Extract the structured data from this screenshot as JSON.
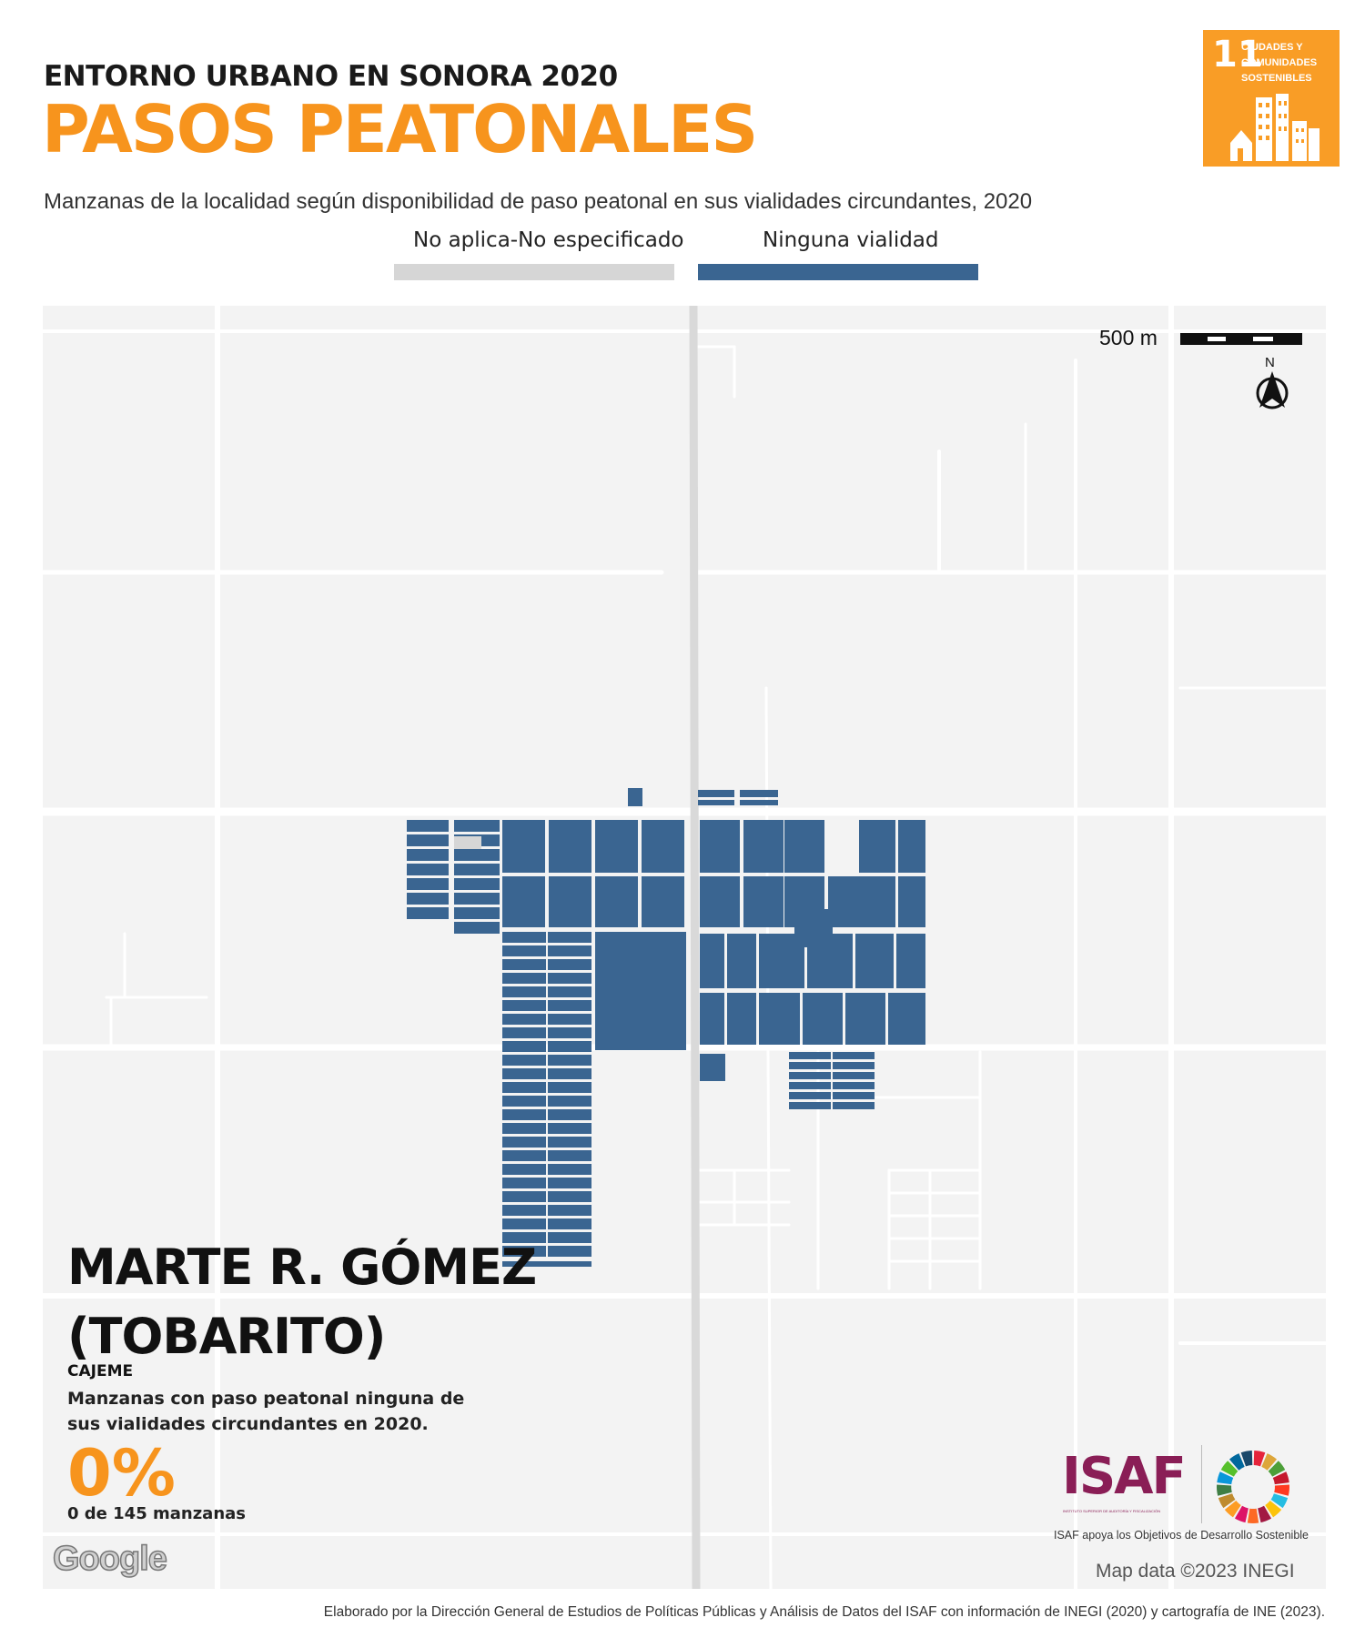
{
  "header": {
    "kicker": "ENTORNO URBANO EN SONORA 2020",
    "title": "PASOS PEATONALES",
    "subtitle": "Manzanas de la localidad según disponibilidad de paso peatonal en sus vialidades circundantes, 2020"
  },
  "legend": [
    {
      "label": "No aplica-No especificado",
      "color": "#d6d6d6"
    },
    {
      "label": "Ninguna vialidad",
      "color": "#3a6591"
    }
  ],
  "sdg_badge": {
    "number": "11",
    "text_lines": [
      "CIUDADES Y",
      "COMUNIDADES",
      "SOSTENIBLES"
    ],
    "color": "#f99d26",
    "icon": "city-buildings-icon"
  },
  "map": {
    "scale_label": "500 m",
    "north_label": "N",
    "background_color": "#f3f3f3",
    "road_color": "#ffffff",
    "highway_color": "#dcdcdc",
    "block_color": "#3a6591",
    "na_block_color": "#d6d6d6",
    "attribution": "Map data ©2023 INEGI",
    "provider_logo": "Google"
  },
  "locality": {
    "name": "MARTE R. GÓMEZ (TOBARITO)",
    "municipality": "CAJEME",
    "stat_description": "Manzanas con paso peatonal ninguna de sus vialidades circundantes en 2020.",
    "percentage": "0%",
    "count_text": "0 de 145 manzanas"
  },
  "logos": {
    "isaf": "ISAF",
    "isaf_subtitle": "INSTITUTO SUPERIOR DE AUDITORÍA Y FISCALIZACIÓN",
    "isaf_color": "#8a1e56",
    "sdg_wheel": "sdg-color-wheel-icon",
    "caption": "ISAF apoya los Objetivos de Desarrollo Sostenible"
  },
  "footer": "Elaborado por la Dirección General de Estudios de Políticas Públicas y Análisis de Datos del ISAF con información de INEGI (2020) y cartografía de INE (2023)."
}
